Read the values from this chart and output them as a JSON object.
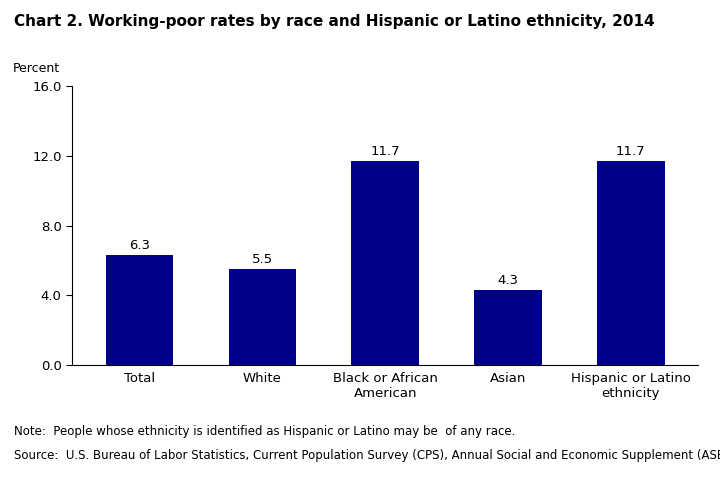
{
  "title": "Chart 2. Working-poor rates by race and Hispanic or Latino ethnicity, 2014",
  "ylabel": "Percent",
  "categories": [
    "Total",
    "White",
    "Black or African\nAmerican",
    "Asian",
    "Hispanic or Latino\nethnicity"
  ],
  "values": [
    6.3,
    5.5,
    11.7,
    4.3,
    11.7
  ],
  "bar_color": "#00008B",
  "ylim": [
    0,
    16.0
  ],
  "yticks": [
    0.0,
    4.0,
    8.0,
    12.0,
    16.0
  ],
  "note_line1": "Note:  People whose ethnicity is identified as Hispanic or Latino may be  of any race.",
  "note_line2": "Source:  U.S. Bureau of Labor Statistics, Current Population Survey (CPS), Annual Social and Economic Supplement (ASEC).",
  "bar_width": 0.55,
  "title_fontsize": 11,
  "label_fontsize": 9,
  "tick_fontsize": 9.5,
  "note_fontsize": 8.5,
  "value_fontsize": 9.5
}
